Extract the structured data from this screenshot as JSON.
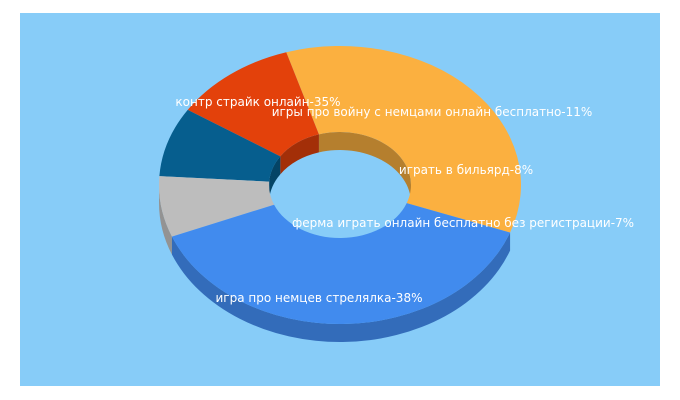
{
  "chart_data": {
    "type": "pie",
    "style": "3d-donut",
    "background_color": "#87ccf8",
    "slices": [
      {
        "label": "контр страйк онлайн-35%",
        "value": 35,
        "color": "#fbb040"
      },
      {
        "label": "игры про войну с немцами онлайн бесплатно-11%",
        "value": 11,
        "color": "#e3410b"
      },
      {
        "label": "играть в бильярд-8%",
        "value": 8,
        "color": "#065e8e"
      },
      {
        "label": "ферма играть онлайн бесплатно без регистрации-7%",
        "value": 7,
        "color": "#bdbdbd"
      },
      {
        "label": "игра про немцев стрелялка-38%",
        "value": 38,
        "color": "#418bee"
      }
    ]
  }
}
